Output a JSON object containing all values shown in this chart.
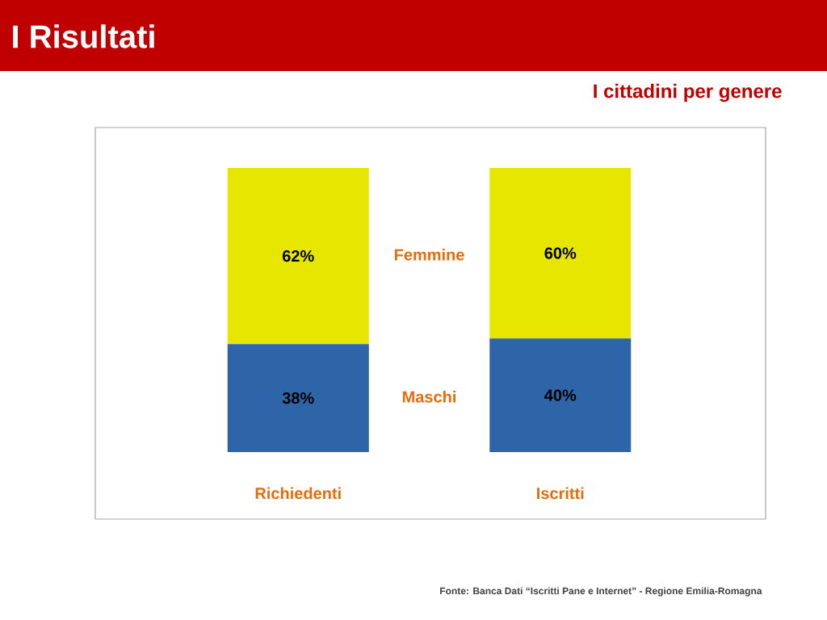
{
  "chart_data": {
    "type": "bar",
    "title": "I Risultati",
    "subtitle": "I cittadini per genere",
    "categories": [
      "Richiedenti",
      "Iscritti"
    ],
    "stacked": true,
    "series": [
      {
        "name": "Maschi",
        "color": "#2e64a8",
        "values": [
          38,
          40
        ],
        "value_labels": [
          "38%",
          "40%"
        ]
      },
      {
        "name": "Femmine",
        "color": "#e6e600",
        "values": [
          62,
          60
        ],
        "value_labels": [
          "62%",
          "60%"
        ]
      }
    ],
    "annotations": [
      "Fonte: Banca Dati “Iscritti Pane e Internet”  -  Regione Emilia-Romagna"
    ]
  }
}
